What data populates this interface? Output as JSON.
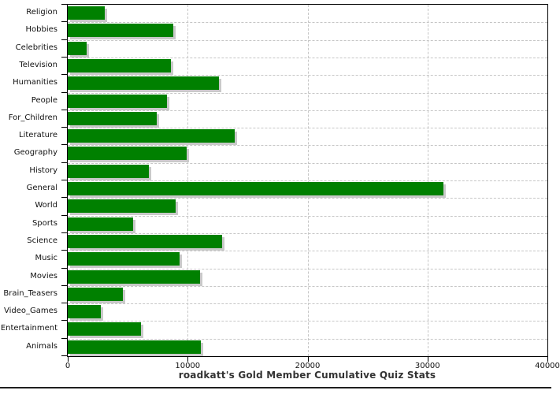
{
  "title": "roadkatt's Gold Member Cumulative Quiz Stats",
  "colors": {
    "bar": "#008000",
    "bar_shadow": "#c9c9c9",
    "gridline": "#c6c6c6",
    "axis": "#000000",
    "label_text": "#111111",
    "title_text": "#333333",
    "background": "#ffffff"
  },
  "chart_data": {
    "type": "bar",
    "orientation": "horizontal",
    "title": "roadkatt's Gold Member Cumulative Quiz Stats",
    "xlabel": "",
    "ylabel": "",
    "xlim": [
      0,
      40000
    ],
    "x_ticks": [
      0,
      10000,
      20000,
      30000,
      40000
    ],
    "grid": "dashed",
    "legend": "none",
    "categories": [
      "Religion",
      "Hobbies",
      "Celebrities",
      "Television",
      "Humanities",
      "People",
      "For_Children",
      "Literature",
      "Geography",
      "History",
      "General",
      "World",
      "Sports",
      "Science",
      "Music",
      "Movies",
      "Brain_Teasers",
      "Video_Games",
      "Entertainment",
      "Animals"
    ],
    "values": [
      3060,
      8780,
      1590,
      8600,
      12580,
      8280,
      7420,
      13930,
      9940,
      6770,
      31300,
      8980,
      5460,
      12890,
      9350,
      11030,
      4630,
      2770,
      6140,
      11070
    ]
  }
}
